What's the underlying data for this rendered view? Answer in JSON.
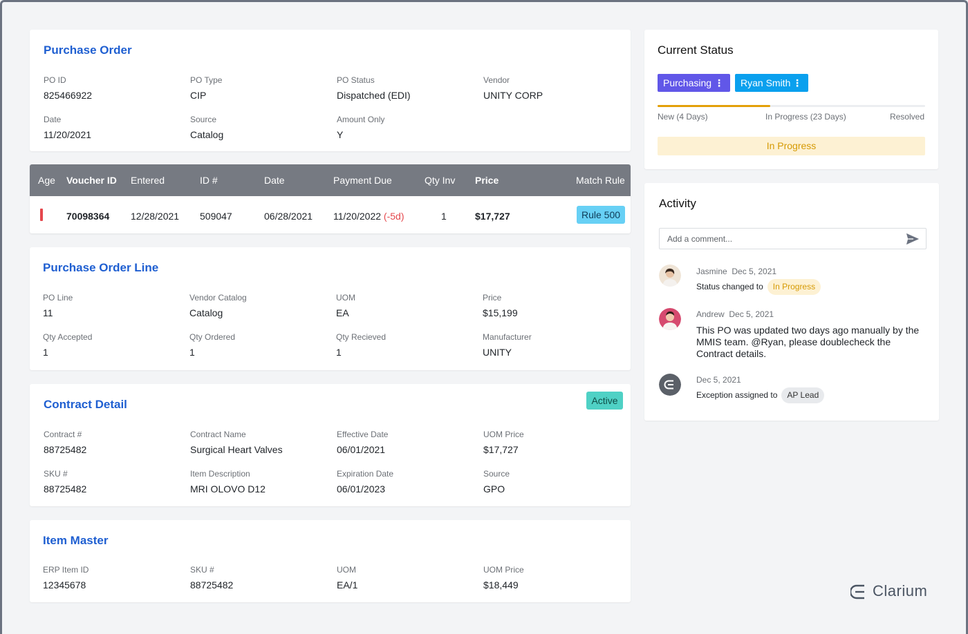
{
  "purchase_order": {
    "title": "Purchase Order",
    "fields": [
      {
        "label": "PO ID",
        "value": "825466922"
      },
      {
        "label": "PO Type",
        "value": "CIP"
      },
      {
        "label": "PO Status",
        "value": "Dispatched (EDI)"
      },
      {
        "label": "Vendor",
        "value": "UNITY CORP"
      },
      {
        "label": "Date",
        "value": "11/20/2021"
      },
      {
        "label": "Source",
        "value": "Catalog"
      },
      {
        "label": "Amount Only",
        "value": "Y"
      }
    ]
  },
  "voucher_table": {
    "headers": {
      "age": "Age",
      "voucher_id": "Voucher ID",
      "entered": "Entered",
      "id_num": "ID #",
      "date": "Date",
      "payment_due": "Payment Due",
      "qty_inv": "Qty Inv",
      "price": "Price",
      "match_rule": "Match Rule"
    },
    "row": {
      "voucher_id": "70098364",
      "entered": "12/28/2021",
      "id_num": "509047",
      "date": "06/28/2021",
      "payment_due": "11/20/2022",
      "payment_due_offset": "(-5d)",
      "qty_inv": "1",
      "price": "$17,727",
      "match_rule": "Rule 500"
    }
  },
  "po_line": {
    "title": "Purchase Order Line",
    "fields": [
      {
        "label": "PO Line",
        "value": "11"
      },
      {
        "label": "Vendor Catalog",
        "value": "Catalog"
      },
      {
        "label": "UOM",
        "value": "EA"
      },
      {
        "label": "Price",
        "value": "$15,199"
      },
      {
        "label": "Qty Accepted",
        "value": "1"
      },
      {
        "label": "Qty Ordered",
        "value": "1"
      },
      {
        "label": "Qty Recieved",
        "value": "1"
      },
      {
        "label": "Manufacturer",
        "value": "UNITY"
      }
    ]
  },
  "contract_detail": {
    "title": "Contract Detail",
    "badge": "Active",
    "fields": [
      {
        "label": "Contract #",
        "value": "88725482"
      },
      {
        "label": "Contract Name",
        "value": "Surgical Heart Valves"
      },
      {
        "label": "Effective Date",
        "value": "06/01/2021"
      },
      {
        "label": "UOM Price",
        "value": "$17,727"
      },
      {
        "label": "SKU #",
        "value": "88725482"
      },
      {
        "label": "Item Description",
        "value": "MRI OLOVO D12"
      },
      {
        "label": "Expiration Date",
        "value": "06/01/2023"
      },
      {
        "label": "Source",
        "value": "GPO"
      }
    ]
  },
  "item_master": {
    "title": "Item Master",
    "fields": [
      {
        "label": "ERP Item ID",
        "value": "12345678"
      },
      {
        "label": "SKU #",
        "value": "88725482"
      },
      {
        "label": "UOM",
        "value": "EA/1"
      },
      {
        "label": "UOM Price",
        "value": "$18,449"
      }
    ]
  },
  "current_status": {
    "title": "Current Status",
    "department": "Purchasing",
    "assignee": "Ryan Smith",
    "menu_glyph": "⋮",
    "stages": [
      "New (4 Days)",
      "In Progress (23 Days)",
      "Resolved"
    ],
    "progress_fraction": 0.42,
    "banner": "In Progress"
  },
  "activity": {
    "title": "Activity",
    "comment_placeholder": "Add a comment...",
    "entries": [
      {
        "author": "Jasmine",
        "date": "Dec 5, 2021",
        "text": "Status changed to",
        "pill": "In Progress"
      },
      {
        "author": "Andrew",
        "date": "Dec 5, 2021",
        "text": "This PO was updated two days ago manually by the MMIS team. @Ryan, please doublecheck the Contract details."
      },
      {
        "date": "Dec 5, 2021",
        "text": "Exception assigned to",
        "pill": "AP Lead"
      }
    ]
  },
  "brand": {
    "name": "Clarium"
  },
  "colors": {
    "title_blue": "#1f5fd1",
    "purchasing_chip": "#6157e8",
    "assignee_chip": "#0aa0ee",
    "progress": "#e3a008",
    "rule_badge": "#67d0f5",
    "active_badge": "#4fd1c5",
    "late": "#e5484d"
  }
}
